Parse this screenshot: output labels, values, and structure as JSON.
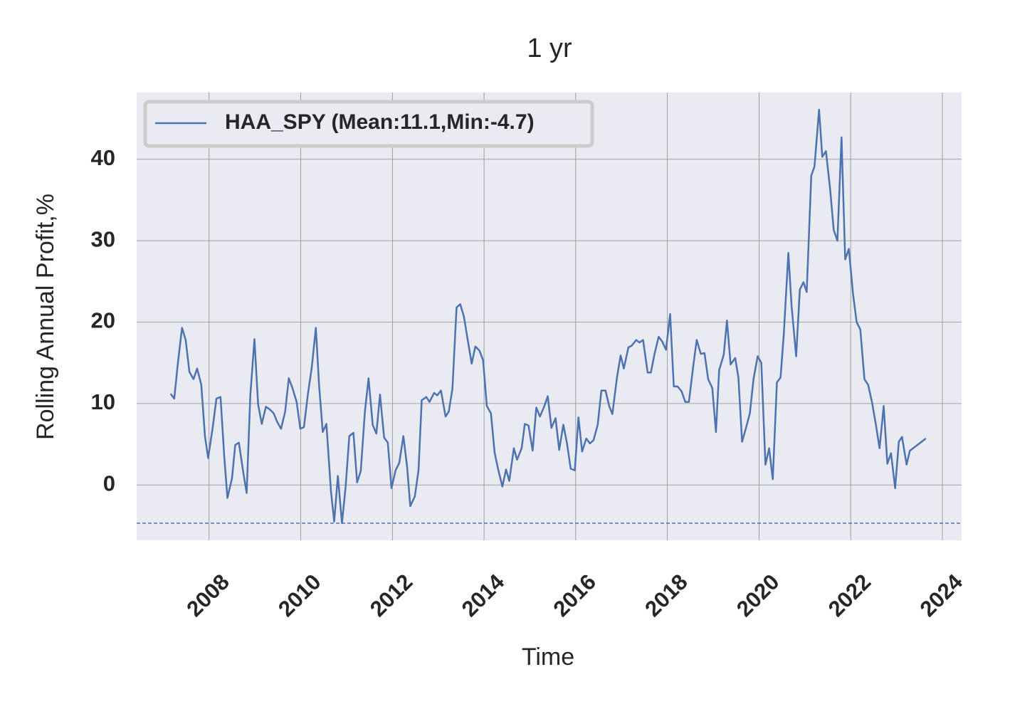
{
  "chart_data": {
    "type": "line",
    "title": "1 yr",
    "xlabel": "Time",
    "ylabel": "Rolling Annual Profit,%",
    "x": [
      2007.16,
      2007.24,
      2007.32,
      2007.41,
      2007.49,
      2007.57,
      2007.66,
      2007.74,
      2007.83,
      2007.91,
      2007.98,
      2008.08,
      2008.16,
      2008.25,
      2008.33,
      2008.4,
      2008.5,
      2008.57,
      2008.65,
      2008.75,
      2008.82,
      2008.9,
      2008.99,
      2009.07,
      2009.15,
      2009.24,
      2009.32,
      2009.41,
      2009.49,
      2009.57,
      2009.66,
      2009.74,
      2009.82,
      2009.91,
      2009.99,
      2010.07,
      2010.16,
      2010.24,
      2010.33,
      2010.4,
      2010.48,
      2010.56,
      2010.66,
      2010.73,
      2010.81,
      2010.9,
      2010.98,
      2011.06,
      2011.15,
      2011.23,
      2011.31,
      2011.4,
      2011.48,
      2011.57,
      2011.65,
      2011.73,
      2011.82,
      2011.9,
      2011.98,
      2012.07,
      2012.15,
      2012.24,
      2012.32,
      2012.39,
      2012.49,
      2012.57,
      2012.64,
      2012.74,
      2012.81,
      2012.91,
      2012.98,
      2013.06,
      2013.16,
      2013.23,
      2013.31,
      2013.4,
      2013.48,
      2013.56,
      2013.65,
      2013.73,
      2013.81,
      2013.9,
      2013.98,
      2014.06,
      2014.15,
      2014.23,
      2014.3,
      2014.4,
      2014.48,
      2014.55,
      2014.65,
      2014.72,
      2014.82,
      2014.89,
      2014.97,
      2015.06,
      2015.14,
      2015.22,
      2015.31,
      2015.39,
      2015.47,
      2015.56,
      2015.64,
      2015.73,
      2015.81,
      2015.89,
      2015.98,
      2016.06,
      2016.14,
      2016.23,
      2016.31,
      2016.39,
      2016.48,
      2016.56,
      2016.65,
      2016.73,
      2016.8,
      2016.9,
      2016.98,
      2017.05,
      2017.15,
      2017.22,
      2017.32,
      2017.39,
      2017.47,
      2017.57,
      2017.64,
      2017.72,
      2017.81,
      2017.89,
      2017.97,
      2018.06,
      2018.14,
      2018.22,
      2018.31,
      2018.39,
      2018.47,
      2018.56,
      2018.64,
      2018.73,
      2018.81,
      2018.89,
      2018.98,
      2019.06,
      2019.13,
      2019.23,
      2019.3,
      2019.38,
      2019.48,
      2019.55,
      2019.63,
      2019.72,
      2019.8,
      2019.88,
      2019.97,
      2020.05,
      2020.14,
      2020.22,
      2020.3,
      2020.39,
      2020.47,
      2020.54,
      2020.64,
      2020.71,
      2020.81,
      2020.89,
      2020.97,
      2021.04,
      2021.14,
      2021.21,
      2021.31,
      2021.38,
      2021.46,
      2021.55,
      2021.63,
      2021.71,
      2021.8,
      2021.88,
      2021.96,
      2022.05,
      2022.13,
      2022.21,
      2022.3,
      2022.38,
      2022.46,
      2022.55,
      2022.63,
      2022.72,
      2022.8,
      2022.88,
      2022.97,
      2023.05,
      2023.12,
      2023.22,
      2023.29,
      2023.64
    ],
    "series": [
      {
        "name": "HAA_SPY (Mean:11.1,Min:-4.7)",
        "color": "#4c72b0",
        "values": [
          11.2,
          10.6,
          15.0,
          19.3,
          17.8,
          13.9,
          13.0,
          14.3,
          12.3,
          6.0,
          3.3,
          7.1,
          10.6,
          10.8,
          3.6,
          -1.6,
          0.8,
          4.9,
          5.2,
          1.4,
          -1.0,
          11.0,
          17.9,
          9.9,
          7.5,
          9.6,
          9.3,
          8.8,
          7.7,
          6.9,
          9.0,
          13.1,
          11.9,
          10.2,
          6.9,
          7.1,
          11.3,
          14.4,
          19.3,
          12.3,
          6.5,
          7.5,
          -0.8,
          -4.5,
          1.1,
          -4.7,
          -0.2,
          6.0,
          6.4,
          0.3,
          1.7,
          9.0,
          13.1,
          7.4,
          6.3,
          11.1,
          5.8,
          5.2,
          -0.4,
          1.8,
          2.7,
          6.0,
          2.3,
          -2.6,
          -1.4,
          1.8,
          10.4,
          10.8,
          10.2,
          11.3,
          11.0,
          11.6,
          8.4,
          9.0,
          11.8,
          21.8,
          22.2,
          20.7,
          17.6,
          14.9,
          17.0,
          16.5,
          15.3,
          9.7,
          8.8,
          4.0,
          2.1,
          -0.2,
          1.9,
          0.5,
          4.5,
          3.1,
          4.5,
          7.5,
          7.3,
          4.2,
          9.5,
          8.4,
          9.6,
          10.9,
          7.0,
          8.2,
          4.3,
          7.4,
          5.1,
          2.0,
          1.8,
          8.3,
          4.1,
          5.7,
          5.1,
          5.5,
          7.4,
          11.6,
          11.6,
          9.7,
          8.7,
          13.2,
          15.9,
          14.3,
          16.9,
          17.1,
          17.8,
          17.5,
          17.8,
          13.8,
          13.8,
          16.1,
          18.2,
          17.6,
          16.6,
          21.0,
          12.1,
          12.1,
          11.5,
          10.2,
          10.2,
          14.4,
          17.8,
          16.1,
          16.2,
          13.0,
          11.9,
          6.5,
          14.1,
          16.0,
          20.2,
          14.8,
          15.6,
          13.2,
          5.3,
          7.1,
          8.8,
          13.0,
          15.8,
          15.0,
          2.5,
          4.5,
          0.7,
          12.6,
          13.2,
          18.5,
          28.5,
          22.0,
          15.8,
          24.0,
          24.9,
          23.7,
          38.0,
          39.1,
          46.1,
          40.3,
          41.0,
          36.4,
          31.3,
          30.0,
          42.7,
          27.7,
          29.0,
          23.5,
          20.0,
          19.1,
          13.0,
          12.3,
          10.3,
          7.4,
          4.5,
          9.7,
          2.6,
          3.9,
          -0.4,
          5.3,
          5.9,
          2.5,
          4.2,
          5.7
        ]
      }
    ],
    "hline": -4.7,
    "xlim": [
      2006.42,
      2024.42
    ],
    "xticks": [
      2008,
      2010,
      2012,
      2014,
      2016,
      2018,
      2020,
      2022,
      2024
    ],
    "ylim": [
      -6.8,
      48.2
    ],
    "yticks": [
      0,
      10,
      20,
      30,
      40
    ],
    "grid": true,
    "legend": "upper left"
  }
}
